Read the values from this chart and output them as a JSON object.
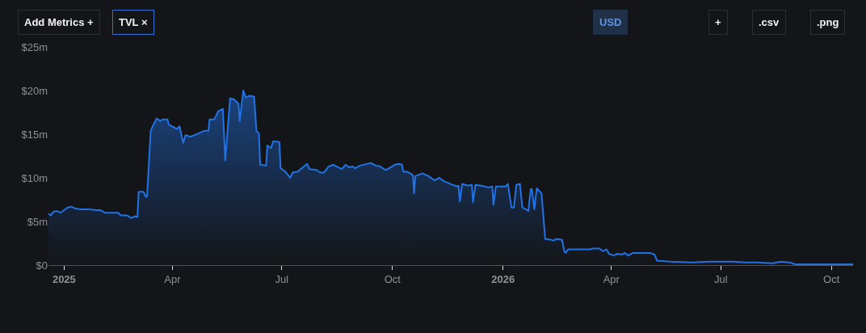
{
  "chart_data": {
    "type": "area",
    "color": "#2172e5",
    "x": [
      "2024-12-19",
      "2024-12-21",
      "2024-12-23",
      "2024-12-26",
      "2024-12-29",
      "2025-01-01",
      "2025-01-04",
      "2025-01-07",
      "2025-01-10",
      "2025-01-14",
      "2025-01-21",
      "2025-01-28",
      "2025-01-31",
      "2025-02-04",
      "2025-02-10",
      "2025-02-15",
      "2025-02-17",
      "2025-02-22",
      "2025-02-26",
      "2025-03-01",
      "2025-03-03",
      "2025-03-04",
      "2025-03-08",
      "2025-03-10",
      "2025-03-11",
      "2025-03-14",
      "2025-03-16",
      "2025-03-19",
      "2025-03-22",
      "2025-03-24",
      "2025-03-28",
      "2025-03-29",
      "2025-04-05",
      "2025-04-07",
      "2025-04-10",
      "2025-04-12",
      "2025-04-16",
      "2025-04-23",
      "2025-04-28",
      "2025-05-01",
      "2025-05-02",
      "2025-05-06",
      "2025-05-09",
      "2025-05-13",
      "2025-05-15",
      "2025-05-17",
      "2025-05-19",
      "2025-05-22",
      "2025-05-26",
      "2025-05-27",
      "2025-05-30",
      "2025-06-01",
      "2025-06-04",
      "2025-06-08",
      "2025-06-10",
      "2025-06-12",
      "2025-06-13",
      "2025-06-18",
      "2025-06-19",
      "2025-06-22",
      "2025-06-24",
      "2025-06-29",
      "2025-06-30",
      "2025-07-04",
      "2025-07-08",
      "2025-07-10",
      "2025-07-14",
      "2025-07-22",
      "2025-07-24",
      "2025-07-30",
      "2025-08-02",
      "2025-08-05",
      "2025-08-09",
      "2025-08-13",
      "2025-08-17",
      "2025-08-20",
      "2025-08-23",
      "2025-08-26",
      "2025-08-29",
      "2025-08-31",
      "2025-09-04",
      "2025-09-13",
      "2025-09-17",
      "2025-09-21",
      "2025-09-25",
      "2025-09-27",
      "2025-10-03",
      "2025-10-06",
      "2025-10-09",
      "2025-10-10",
      "2025-10-13",
      "2025-10-16",
      "2025-10-18",
      "2025-10-19",
      "2025-10-20",
      "2025-10-26",
      "2025-10-31",
      "2025-11-05",
      "2025-11-09",
      "2025-11-13",
      "2025-11-20",
      "2025-11-24",
      "2025-11-25",
      "2025-11-26",
      "2025-11-28",
      "2025-12-03",
      "2025-12-06",
      "2025-12-07",
      "2025-12-09",
      "2025-12-14",
      "2025-12-20",
      "2025-12-23",
      "2025-12-24",
      "2025-12-26",
      "2026-01-03",
      "2026-01-05",
      "2026-01-08",
      "2026-01-10",
      "2026-01-12",
      "2026-01-15",
      "2026-01-17",
      "2026-01-21",
      "2026-01-22",
      "2026-01-24",
      "2026-01-25",
      "2026-01-27",
      "2026-01-29",
      "2026-02-02",
      "2026-02-05",
      "2026-02-10",
      "2026-02-12",
      "2026-02-14",
      "2026-02-19",
      "2026-02-21",
      "2026-02-22",
      "2026-02-24",
      "2026-03-14",
      "2026-03-16",
      "2026-03-22",
      "2026-03-25",
      "2026-03-28",
      "2026-03-30",
      "2026-04-03",
      "2026-04-06",
      "2026-04-10",
      "2026-04-12",
      "2026-04-15",
      "2026-04-19",
      "2026-05-03",
      "2026-05-07",
      "2026-05-09",
      "2026-05-20",
      "2026-06-07",
      "2026-06-21",
      "2026-07-11",
      "2026-07-22",
      "2026-07-31",
      "2026-08-13",
      "2026-08-20",
      "2026-08-27",
      "2026-09-01",
      "2026-09-27",
      "2026-10-19"
    ],
    "values": [
      5.9,
      5.7,
      6.1,
      6.2,
      6.0,
      6.3,
      6.6,
      6.7,
      6.5,
      6.4,
      6.4,
      6.3,
      6.3,
      6.0,
      6.0,
      6.0,
      5.7,
      5.7,
      5.4,
      5.6,
      5.5,
      8.4,
      8.4,
      7.8,
      7.9,
      15.4,
      16.0,
      16.8,
      16.5,
      16.7,
      16.7,
      16.1,
      15.6,
      15.9,
      14.0,
      14.9,
      14.7,
      15.1,
      15.4,
      15.4,
      16.7,
      16.7,
      17.6,
      17.9,
      12.0,
      15.6,
      19.1,
      19.0,
      18.5,
      16.5,
      20.0,
      19.2,
      19.4,
      19.3,
      15.3,
      15.1,
      11.5,
      11.4,
      13.7,
      13.4,
      14.2,
      14.1,
      11.1,
      10.7,
      10.0,
      10.6,
      10.7,
      11.6,
      11.0,
      10.9,
      10.6,
      10.6,
      11.3,
      11.5,
      11.2,
      11.0,
      11.5,
      11.2,
      11.3,
      11.1,
      11.4,
      11.7,
      11.4,
      11.3,
      10.9,
      11.0,
      11.5,
      11.6,
      11.5,
      10.7,
      10.7,
      10.5,
      10.3,
      8.2,
      10.2,
      10.5,
      10.2,
      9.7,
      10.0,
      9.6,
      9.2,
      9.0,
      9.1,
      7.3,
      9.3,
      9.1,
      9.2,
      7.2,
      9.2,
      9.1,
      8.9,
      9.0,
      6.9,
      9.0,
      9.0,
      9.3,
      6.6,
      6.6,
      9.2,
      9.3,
      6.6,
      6.3,
      6.2,
      8.7,
      8.7,
      6.4,
      8.8,
      8.2,
      3.0,
      2.9,
      2.8,
      3.0,
      2.9,
      1.5,
      1.4,
      1.8,
      1.8,
      1.9,
      1.9,
      1.6,
      1.8,
      1.3,
      1.1,
      1.3,
      1.2,
      1.4,
      1.1,
      1.4,
      1.4,
      1.2,
      0.5,
      0.4,
      0.3,
      0.4,
      0.4,
      0.3,
      0.3,
      0.2,
      0.4,
      0.3,
      0.1,
      0.1,
      0.1
    ],
    "xlim": [
      "2024-12-19",
      "2026-10-19"
    ],
    "xticks": [
      {
        "value": "2025-01-01",
        "label": "2025"
      },
      {
        "value": "2025-04-01",
        "label": "Apr"
      },
      {
        "value": "2025-07-01",
        "label": "Jul"
      },
      {
        "value": "2025-10-01",
        "label": "Oct"
      },
      {
        "value": "2026-01-01",
        "label": "2026"
      },
      {
        "value": "2026-04-01",
        "label": "Apr"
      },
      {
        "value": "2026-07-01",
        "label": "Jul"
      },
      {
        "value": "2026-10-01",
        "label": "Oct"
      }
    ],
    "ylim": [
      0,
      25
    ],
    "yticks": [
      {
        "value": 0,
        "label": "$0"
      },
      {
        "value": 5,
        "label": "$5m"
      },
      {
        "value": 10,
        "label": "$10m"
      },
      {
        "value": 15,
        "label": "$15m"
      },
      {
        "value": 20,
        "label": "$20m"
      },
      {
        "value": 25,
        "label": "$25m"
      }
    ],
    "annotations": [
      "Add Metrics +",
      "TVL ×",
      "USD",
      "+",
      ".csv",
      ".png"
    ]
  }
}
